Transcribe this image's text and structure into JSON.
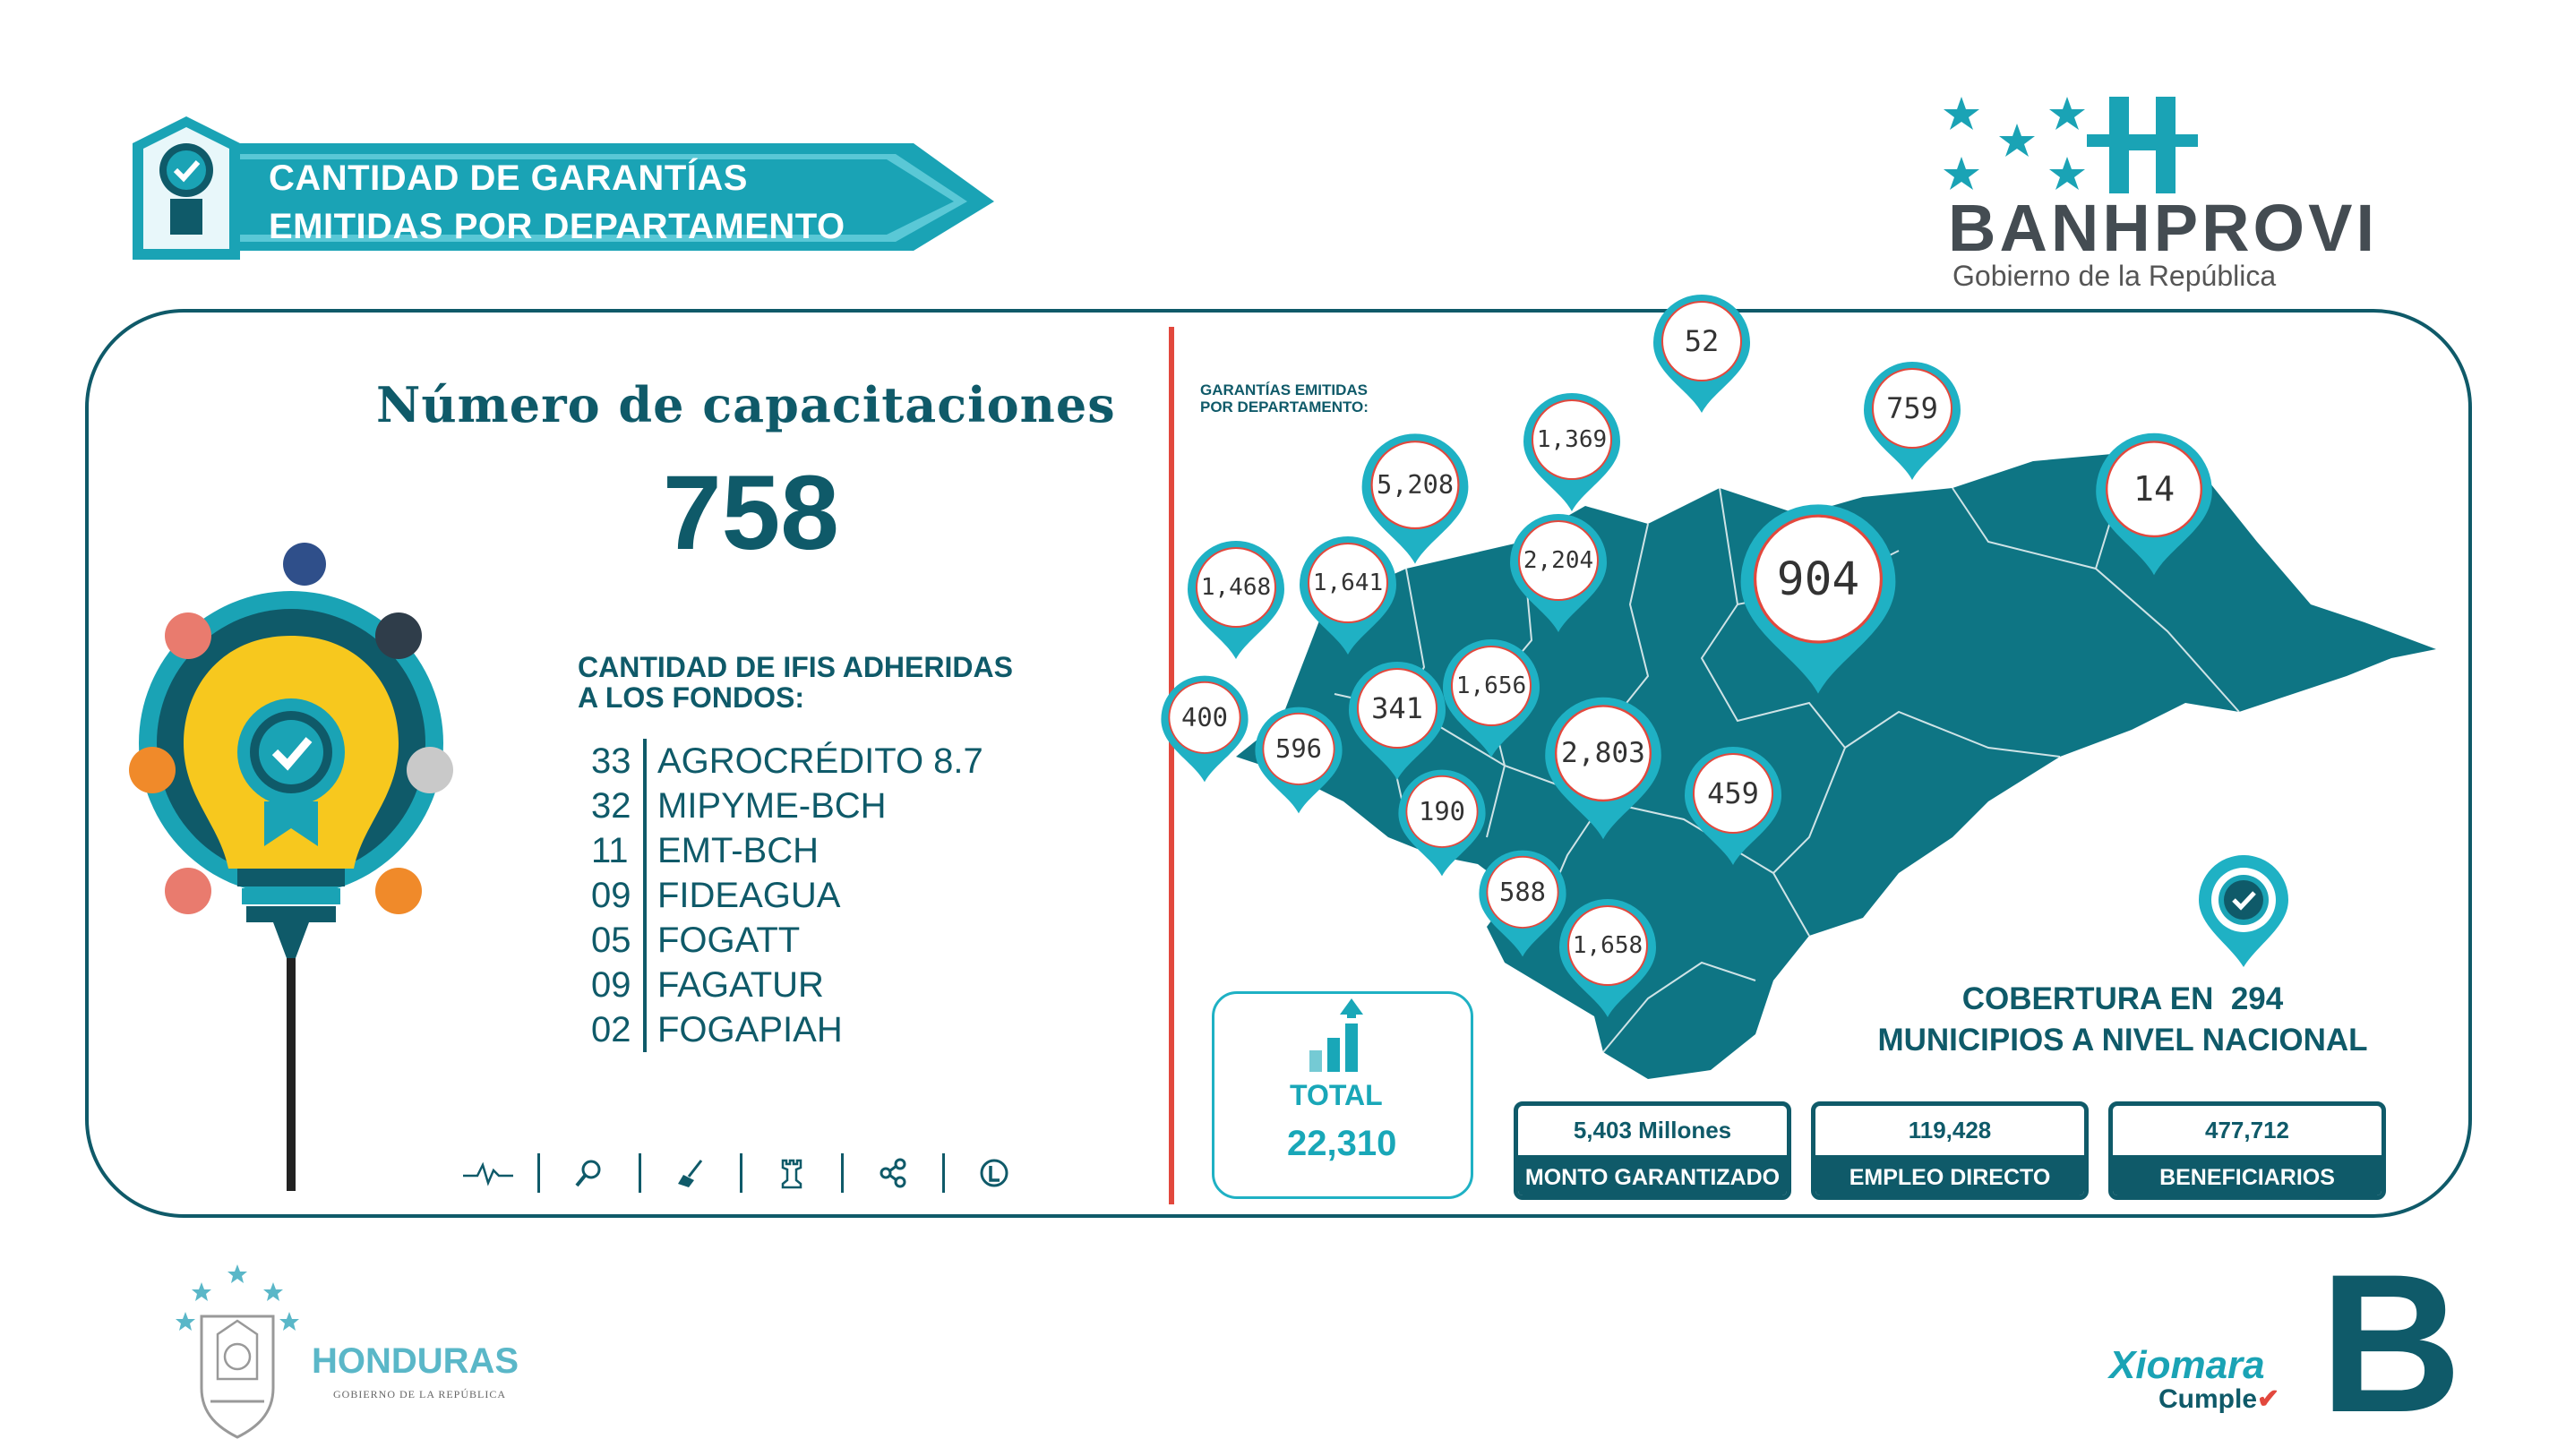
{
  "header": {
    "title_line1": "CANTIDAD DE GARANTÍAS",
    "title_line2": "EMITIDAS POR DEPARTAMENTO"
  },
  "brand": {
    "name": "BANHPROVI",
    "subtitle": "Gobierno de la República"
  },
  "left": {
    "cap_title": "Número de capacitaciones",
    "cap_number": "758",
    "ifis_title_1": "CANTIDAD DE IFIS ADHERIDAS",
    "ifis_title_2": "A LOS FONDOS:",
    "ifis": [
      {
        "num": "33",
        "name": "AGROCRÉDITO 8.7"
      },
      {
        "num": "32",
        "name": "MIPYME-BCH"
      },
      {
        "num": "11",
        "name": "EMT-BCH"
      },
      {
        "num": "09",
        "name": "FIDEAGUA"
      },
      {
        "num": "05",
        "name": "FOGATT"
      },
      {
        "num": "09",
        "name": "FAGATUR"
      },
      {
        "num": "02",
        "name": "FOGAPIAH"
      }
    ],
    "bottom_icons": [
      "pulse-icon",
      "magnifier-icon",
      "broom-icon",
      "chess-rook-icon",
      "share-icon",
      "leaf-icon"
    ]
  },
  "map": {
    "title_1": "GARANTÍAS EMITIDAS",
    "title_2": "POR DEPARTAMENTO:",
    "pins": [
      "52",
      "1,369",
      "759",
      "5,208",
      "14",
      "2,204",
      "1,468",
      "1,641",
      "904",
      "1,656",
      "400",
      "341",
      "596",
      "2,803",
      "459",
      "190",
      "588",
      "1,658"
    ],
    "fill_color": "#0e7584",
    "pin_color": "#1fb1c4"
  },
  "total": {
    "label": "TOTAL",
    "value": "22,310"
  },
  "stats": [
    {
      "value": "5,403 Millones",
      "label": "MONTO GARANTIZADO"
    },
    {
      "value": "119,428",
      "label": "EMPLEO DIRECTO"
    },
    {
      "value": "477,712",
      "label": "BENEFICIARIOS"
    }
  ],
  "coverage": {
    "line1_prefix": "COBERTURA EN",
    "count": "294",
    "line2": "MUNICIPIOS A NIVEL NACIONAL"
  },
  "footer": {
    "honduras": "HONDURAS",
    "honduras_sub": "GOBIERNO DE LA REPÚBLICA",
    "xiomara": "Xiomara",
    "cumple": "Cumple",
    "big_letter": "B"
  }
}
